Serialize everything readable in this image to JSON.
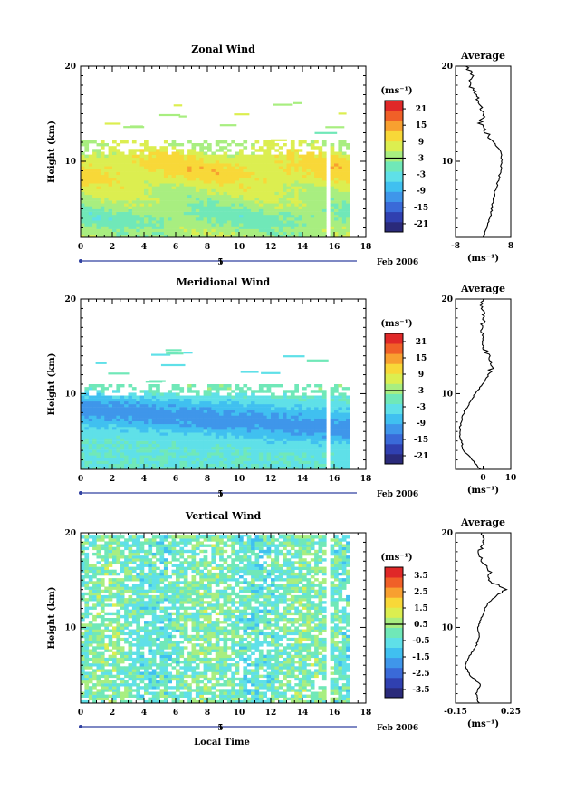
{
  "figure_xlabel": "Local Time",
  "chart_data": [
    {
      "type": "heatmap",
      "title": "Zonal Wind",
      "ylabel": "Height (km)",
      "xlim": [
        0,
        18
      ],
      "ylim": [
        2,
        20
      ],
      "x_ticks": [
        0,
        2,
        4,
        6,
        8,
        10,
        12,
        14,
        16,
        18
      ],
      "y_ticks": [
        10,
        20
      ],
      "date_label": "5",
      "month_label": "Feb 2006",
      "colorbar": {
        "unit": "(ms⁻¹)",
        "ticks": [
          21,
          15,
          9,
          3,
          -3,
          -9,
          -15,
          -21
        ],
        "range": [
          -24,
          24
        ]
      },
      "data_coverage": {
        "x_start": 0,
        "x_gap": [
          15.3,
          15.7
        ],
        "x_end": 17,
        "y_top": 12
      },
      "field_description": "mostly positive values 0–15, highest near 9 km",
      "average_profile": {
        "title": "Average",
        "xlim": [
          -8,
          8
        ],
        "x_ticks": [
          -8,
          8
        ],
        "y_ticks": [
          10,
          20
        ],
        "xlabel": "(ms⁻¹)",
        "height": [
          2,
          3,
          4,
          5,
          6,
          7,
          8,
          9,
          10,
          11,
          12,
          13,
          14,
          15,
          16,
          17,
          18,
          19,
          20
        ],
        "value": [
          0,
          1,
          2,
          2.5,
          3,
          3.5,
          4.5,
          5,
          5.5,
          5,
          3,
          1,
          -1,
          0.5,
          -1.5,
          -2,
          -4,
          -3,
          -5
        ]
      }
    },
    {
      "type": "heatmap",
      "title": "Meridional Wind",
      "ylabel": "Height (km)",
      "xlim": [
        0,
        18
      ],
      "ylim": [
        2,
        20
      ],
      "x_ticks": [
        0,
        2,
        4,
        6,
        8,
        10,
        12,
        14,
        16,
        18
      ],
      "y_ticks": [
        10,
        20
      ],
      "date_label": "5",
      "month_label": "Feb 2006",
      "colorbar": {
        "unit": "(ms⁻¹)",
        "ticks": [
          21,
          15,
          9,
          3,
          -3,
          -9,
          -15,
          -21
        ],
        "range": [
          -24,
          24
        ]
      },
      "data_coverage": {
        "x_start": 0,
        "x_gap": [
          15.3,
          15.7
        ],
        "x_end": 17,
        "y_top": 11
      },
      "field_description": "mostly negative values, minimum near 7–8 km",
      "average_profile": {
        "title": "Average",
        "xlim": [
          -10,
          10
        ],
        "x_ticks": [
          0,
          10
        ],
        "y_ticks": [
          10,
          20
        ],
        "xlabel": "(ms⁻¹)",
        "height": [
          2,
          3,
          4,
          5,
          6,
          7,
          8,
          9,
          10,
          11,
          12,
          13,
          14,
          15,
          16,
          17,
          18,
          19,
          20
        ],
        "value": [
          -1,
          -4,
          -7,
          -8,
          -8.5,
          -8,
          -7,
          -5,
          -3,
          0,
          2,
          3.5,
          2,
          0,
          -0.5,
          -0.5,
          0.5,
          -0.5,
          0
        ]
      }
    },
    {
      "type": "heatmap",
      "title": "Vertical Wind",
      "ylabel": "Height (km)",
      "xlim": [
        0,
        18
      ],
      "ylim": [
        2,
        20
      ],
      "x_ticks": [
        0,
        2,
        4,
        6,
        8,
        10,
        12,
        14,
        16,
        18
      ],
      "y_ticks": [
        10,
        20
      ],
      "date_label": "5",
      "month_label": "Feb 2006",
      "colorbar": {
        "unit": "(ms⁻¹)",
        "ticks": [
          3.5,
          2.5,
          1.5,
          0.5,
          -0.5,
          -1.5,
          -2.5,
          -3.5
        ],
        "range": [
          -4,
          4
        ]
      },
      "data_coverage": {
        "x_start": 0,
        "x_gap": [
          15.3,
          15.7
        ],
        "x_end": 17,
        "y_top": 19.5
      },
      "field_description": "small values around -0.5 to 0.5 with scattered gaps",
      "average_profile": {
        "title": "Average",
        "xlim": [
          -0.15,
          0.25
        ],
        "x_ticks": [
          -0.15,
          0.25
        ],
        "y_ticks": [
          10,
          20
        ],
        "xlabel": "(ms⁻¹)",
        "height": [
          2,
          3,
          4,
          5,
          6,
          7,
          8,
          9,
          10,
          11,
          12,
          13,
          14,
          15,
          16,
          17,
          18,
          19,
          20
        ],
        "value": [
          0.02,
          0,
          0.03,
          -0.05,
          -0.08,
          -0.05,
          0,
          0.02,
          0.01,
          0.04,
          0.06,
          0.12,
          0.22,
          0.08,
          0.1,
          0.05,
          0.02,
          0.06,
          0.04
        ]
      }
    }
  ]
}
